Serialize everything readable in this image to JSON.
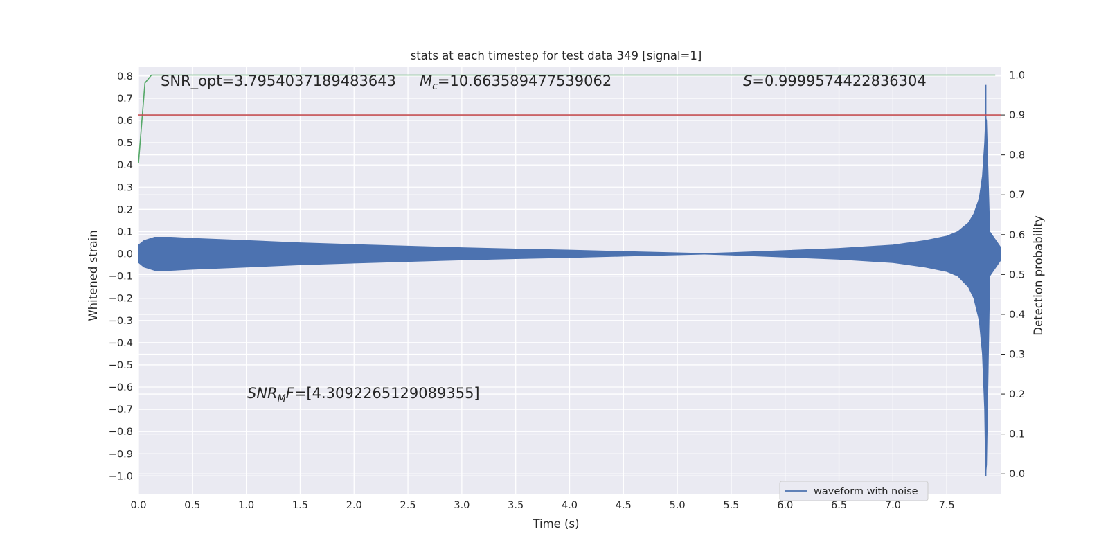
{
  "chart_data": {
    "type": "line",
    "title": "stats at each timestep for test data 349 [signal=1]",
    "xlabel": "Time (s)",
    "ylabel_left": "Whitened strain",
    "ylabel_right": "Detection probability",
    "xlim": [
      0.0,
      8.0
    ],
    "ylim_left": [
      -1.08,
      0.84
    ],
    "ylim_right": [
      -0.05,
      1.02
    ],
    "x_ticks": [
      "0.0",
      "0.5",
      "1.0",
      "1.5",
      "2.0",
      "2.5",
      "3.0",
      "3.5",
      "4.0",
      "4.5",
      "5.0",
      "5.5",
      "6.0",
      "6.5",
      "7.0",
      "7.5"
    ],
    "y_left_ticks": [
      "0.8",
      "0.7",
      "0.6",
      "0.5",
      "0.4",
      "0.3",
      "0.2",
      "0.1",
      "0.0",
      "−0.1",
      "−0.2",
      "−0.3",
      "−0.4",
      "−0.5",
      "−0.6",
      "−0.7",
      "−0.8",
      "−0.9",
      "−1.0"
    ],
    "y_right_ticks": [
      "0.0",
      "0.1",
      "0.2",
      "0.3",
      "0.4",
      "0.5",
      "0.6",
      "0.7",
      "0.8",
      "0.9",
      "1.0"
    ],
    "annotations": {
      "snr_opt": "SNR_opt=3.7954037189483643",
      "mc_symbol": "M",
      "mc_sub": "c",
      "mc_value": "=10.663589477539062",
      "s_symbol": "S",
      "s_value": "=0.9999574422836304",
      "snrmf_symbol": "SNR",
      "snrmf_sub": "M",
      "snrmf_tail": "F",
      "snrmf_value": "=[4.3092265129089355]"
    },
    "legend": {
      "placement": "lower-right",
      "entry": "waveform with noise"
    },
    "series": [
      {
        "name": "waveform with noise",
        "axis": "left",
        "color": "#4c72b0",
        "kind": "envelope",
        "t": [
          0.0,
          0.05,
          0.15,
          0.3,
          0.5,
          1.0,
          1.5,
          2.0,
          2.5,
          3.0,
          3.5,
          4.0,
          4.5,
          5.0,
          5.25,
          5.5,
          6.0,
          6.5,
          7.0,
          7.3,
          7.5,
          7.6,
          7.7,
          7.75,
          7.8,
          7.83,
          7.85,
          7.86,
          7.87,
          7.9,
          8.0
        ],
        "upper": [
          0.04,
          0.06,
          0.075,
          0.075,
          0.07,
          0.06,
          0.05,
          0.042,
          0.035,
          0.028,
          0.022,
          0.017,
          0.011,
          0.005,
          0.002,
          0.006,
          0.015,
          0.025,
          0.04,
          0.06,
          0.08,
          0.1,
          0.14,
          0.18,
          0.25,
          0.35,
          0.5,
          0.62,
          0.6,
          0.1,
          0.03
        ],
        "lower": [
          -0.04,
          -0.06,
          -0.075,
          -0.075,
          -0.07,
          -0.06,
          -0.05,
          -0.042,
          -0.035,
          -0.028,
          -0.022,
          -0.017,
          -0.011,
          -0.005,
          -0.002,
          -0.006,
          -0.015,
          -0.025,
          -0.04,
          -0.06,
          -0.08,
          -0.1,
          -0.15,
          -0.2,
          -0.3,
          -0.45,
          -0.7,
          -1.0,
          -0.95,
          -0.1,
          -0.03
        ],
        "spike": {
          "t": 7.86,
          "top": 0.76,
          "bottom": -1.0
        }
      },
      {
        "name": "",
        "axis": "right",
        "color": "#55a868",
        "kind": "line",
        "x": [
          0.0,
          0.06,
          0.12,
          7.95
        ],
        "y": [
          0.78,
          0.98,
          1.0,
          1.0
        ]
      },
      {
        "name": "",
        "axis": "right",
        "color": "#c44e52",
        "kind": "line",
        "x": [
          0.0,
          8.0
        ],
        "y": [
          0.9,
          0.9
        ]
      }
    ],
    "grid": true,
    "background": "#eaeaf2"
  }
}
